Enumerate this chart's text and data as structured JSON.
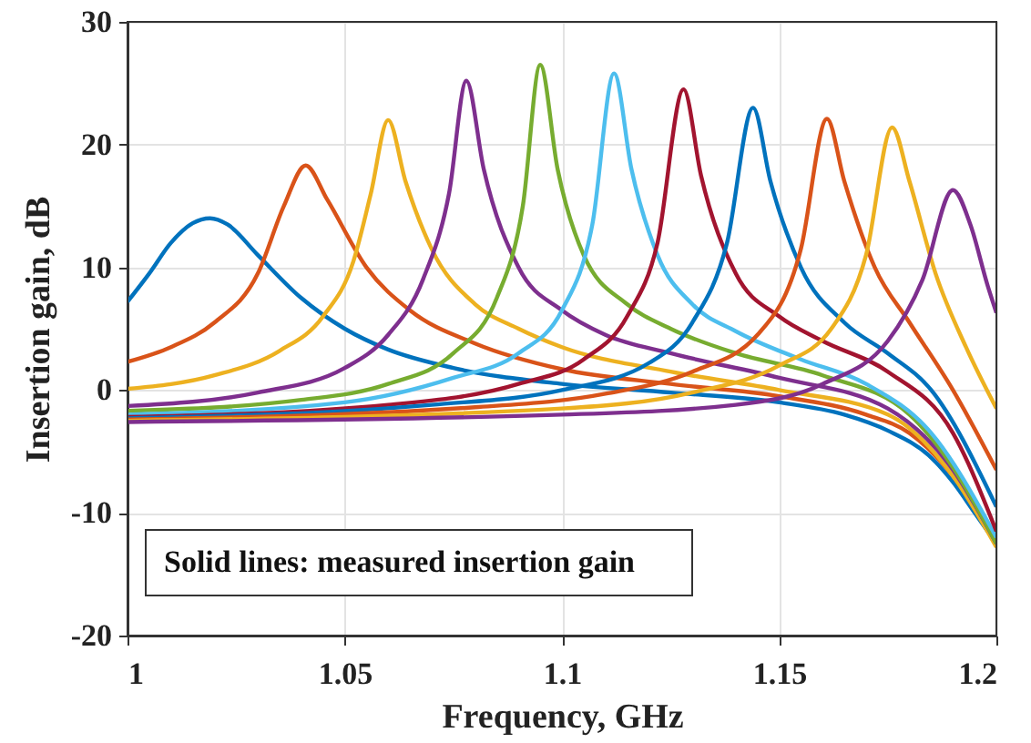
{
  "chart_data": {
    "type": "line",
    "xlabel": "Frequency, GHz",
    "ylabel": "Insertion gain, dB",
    "xlim": [
      1,
      1.2
    ],
    "xticks": [
      1,
      1.05,
      1.1,
      1.15,
      1.2
    ],
    "ylim": [
      -20,
      30
    ],
    "yticks": [
      -20,
      -10,
      0,
      10,
      20,
      30
    ],
    "grid": true,
    "line_style": "solid",
    "marker": "none",
    "annotations": [
      "Solid lines: measured insertion gain"
    ],
    "series": [
      {
        "color": "#0072bd",
        "x": [
          1.0,
          1.005,
          1.01,
          1.015,
          1.019,
          1.023,
          1.03,
          1.04,
          1.05,
          1.06,
          1.075,
          1.1,
          1.125,
          1.15,
          1.165,
          1.175,
          1.185,
          1.19,
          1.195,
          1.2
        ],
        "values": [
          7.2,
          9.5,
          12,
          13.6,
          14,
          13.5,
          11,
          7.5,
          5,
          3.3,
          1.8,
          0.5,
          -0.2,
          -1,
          -2,
          -3.3,
          -5.5,
          -7.5,
          -10,
          -12.5
        ]
      },
      {
        "color": "#d95319",
        "x": [
          1.0,
          1.01,
          1.02,
          1.03,
          1.036,
          1.041,
          1.046,
          1.055,
          1.065,
          1.08,
          1.1,
          1.125,
          1.15,
          1.17,
          1.18,
          1.19,
          1.2
        ],
        "values": [
          2.3,
          3.5,
          5.5,
          9.5,
          15,
          18.3,
          15.5,
          10,
          6.5,
          3.8,
          1.7,
          0.5,
          -0.5,
          -2,
          -3.5,
          -7,
          -12.5
        ]
      },
      {
        "color": "#edb120",
        "x": [
          1.0,
          1.02,
          1.035,
          1.045,
          1.052,
          1.056,
          1.06,
          1.064,
          1.07,
          1.08,
          1.09,
          1.1,
          1.125,
          1.15,
          1.175,
          1.19,
          1.2
        ],
        "values": [
          0.1,
          1.2,
          3.2,
          6,
          10.5,
          16,
          22,
          17,
          11.5,
          7,
          5,
          3.5,
          1.5,
          0,
          -2,
          -7,
          -12.8
        ]
      },
      {
        "color": "#7e2f8e",
        "x": [
          1.0,
          1.03,
          1.05,
          1.06,
          1.068,
          1.074,
          1.078,
          1.082,
          1.09,
          1.1,
          1.11,
          1.125,
          1.15,
          1.175,
          1.19,
          1.2
        ],
        "values": [
          -1.3,
          -0.2,
          1.8,
          4.5,
          9,
          16,
          25.2,
          18,
          10,
          6.5,
          4.5,
          3,
          1,
          -1.5,
          -6.5,
          -12.5
        ]
      },
      {
        "color": "#77ac30",
        "x": [
          1.0,
          1.04,
          1.06,
          1.075,
          1.085,
          1.091,
          1.095,
          1.099,
          1.105,
          1.115,
          1.125,
          1.14,
          1.16,
          1.18,
          1.19,
          1.2
        ],
        "values": [
          -1.7,
          -0.8,
          0.5,
          3,
          7.5,
          15,
          26.5,
          18,
          11,
          7,
          5,
          3,
          1.2,
          -2,
          -6.3,
          -12.5
        ]
      },
      {
        "color": "#4dbeee",
        "x": [
          1.0,
          1.05,
          1.075,
          1.09,
          1.1,
          1.107,
          1.112,
          1.116,
          1.122,
          1.13,
          1.14,
          1.155,
          1.17,
          1.185,
          1.2
        ],
        "values": [
          -2,
          -1,
          1,
          3,
          6.5,
          13.5,
          25.8,
          18,
          11,
          7,
          4.8,
          2.5,
          0.5,
          -3.5,
          -12
        ]
      },
      {
        "color": "#a2142f",
        "x": [
          1.0,
          1.06,
          1.09,
          1.105,
          1.115,
          1.122,
          1.128,
          1.132,
          1.14,
          1.15,
          1.16,
          1.175,
          1.19,
          1.2
        ],
        "values": [
          -2.2,
          -1.2,
          0.5,
          2.5,
          6,
          12,
          24.5,
          17.5,
          9.5,
          6,
          4,
          1.5,
          -3.5,
          -11.5
        ]
      },
      {
        "color": "#0072bd",
        "x": [
          1.0,
          1.07,
          1.1,
          1.12,
          1.13,
          1.138,
          1.144,
          1.148,
          1.155,
          1.165,
          1.175,
          1.185,
          1.2
        ],
        "values": [
          -2.3,
          -1.2,
          0,
          2.2,
          5.5,
          12,
          23,
          17,
          10,
          5.5,
          3,
          0,
          -9.5
        ]
      },
      {
        "color": "#d95319",
        "x": [
          1.0,
          1.08,
          1.11,
          1.13,
          1.145,
          1.155,
          1.161,
          1.165,
          1.172,
          1.18,
          1.19,
          1.2
        ],
        "values": [
          -2.4,
          -1.4,
          -0.3,
          1.5,
          4.5,
          11.5,
          22.1,
          17,
          10,
          5.5,
          0,
          -6.5
        ]
      },
      {
        "color": "#edb120",
        "x": [
          1.0,
          1.1,
          1.13,
          1.15,
          1.162,
          1.17,
          1.176,
          1.18,
          1.186,
          1.193,
          1.2
        ],
        "values": [
          -2.5,
          -1.5,
          -0.2,
          2,
          5,
          11,
          21.4,
          17,
          9.5,
          3.5,
          -1.5
        ]
      },
      {
        "color": "#7e2f8e",
        "x": [
          1.0,
          1.1,
          1.14,
          1.16,
          1.175,
          1.183,
          1.19,
          1.194,
          1.198,
          1.2
        ],
        "values": [
          -2.6,
          -2,
          -1.2,
          0.5,
          4,
          9,
          16.3,
          13.5,
          8.5,
          6.3
        ]
      }
    ]
  }
}
